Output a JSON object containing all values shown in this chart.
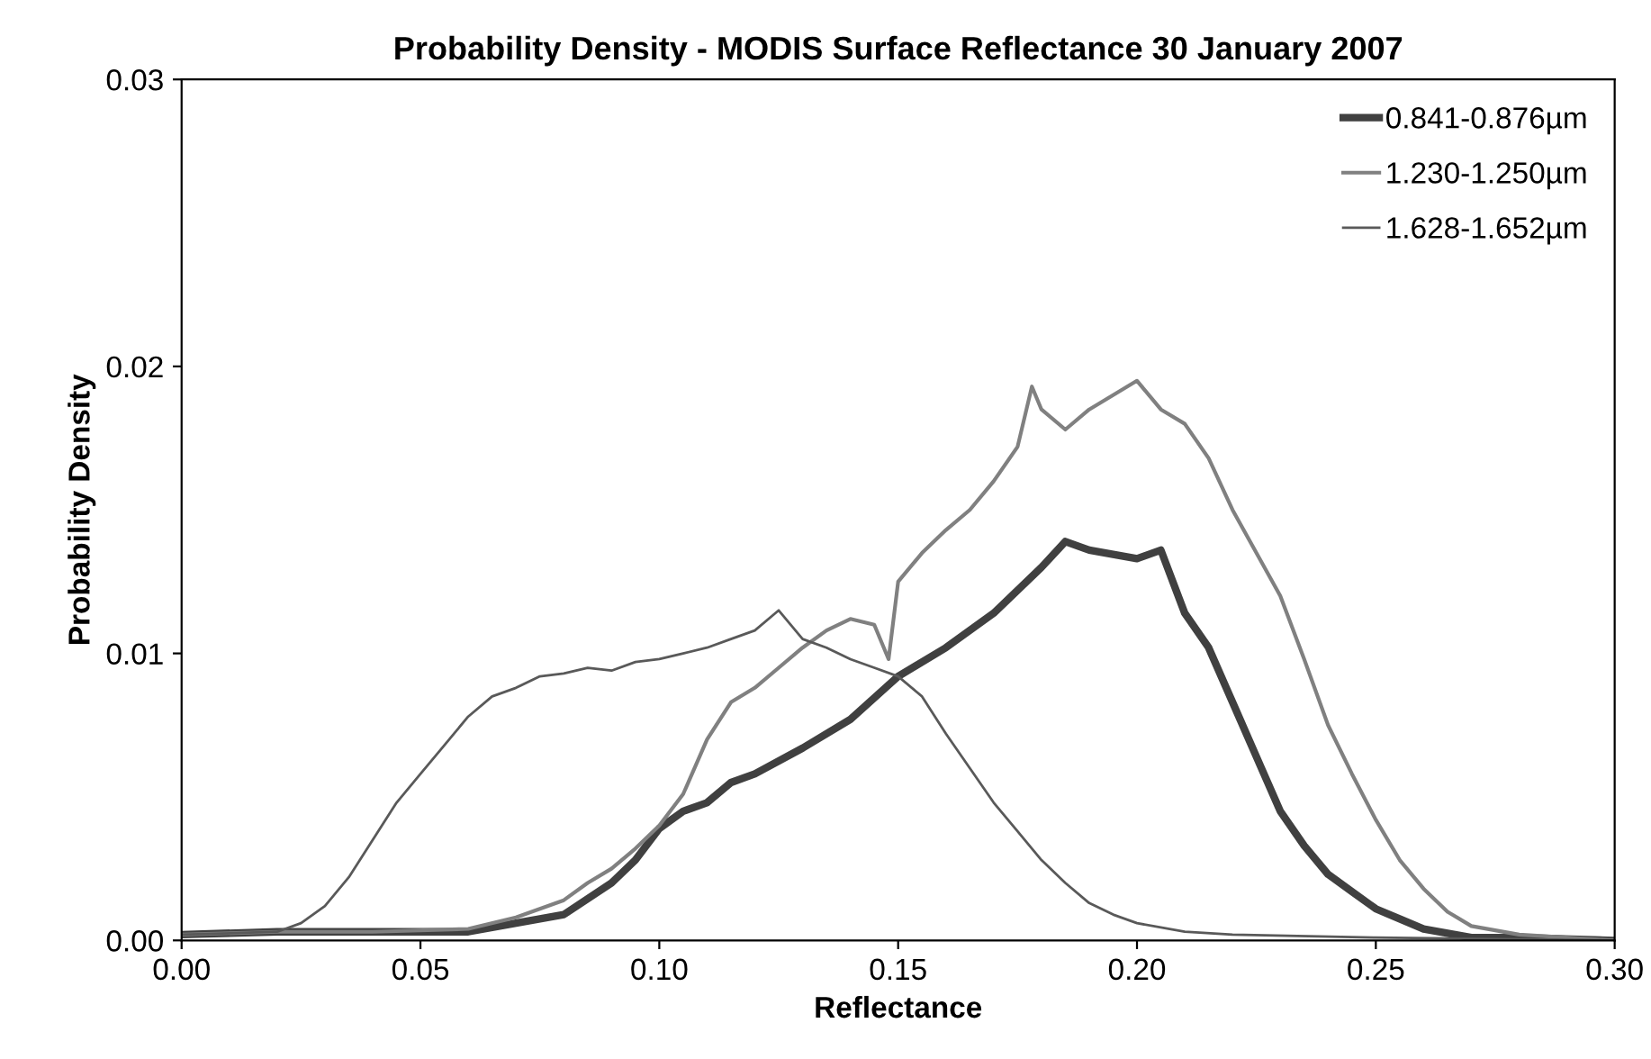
{
  "chart_data": {
    "type": "line",
    "title": "Probability Density - MODIS Surface Reflectance 30 January 2007",
    "xlabel": "Reflectance",
    "ylabel": "Probability Density",
    "xlim": [
      0,
      0.3
    ],
    "ylim": [
      0,
      0.03
    ],
    "xticks": [
      {
        "value": 0,
        "label": "0.00"
      },
      {
        "value": 0.05,
        "label": "0.05"
      },
      {
        "value": 0.1,
        "label": "0.10"
      },
      {
        "value": 0.15,
        "label": "0.15"
      },
      {
        "value": 0.2,
        "label": "0.20"
      },
      {
        "value": 0.25,
        "label": "0.25"
      },
      {
        "value": 0.3,
        "label": "0.30"
      }
    ],
    "yticks": [
      {
        "value": 0,
        "label": "0.00"
      },
      {
        "value": 0.01,
        "label": "0.01"
      },
      {
        "value": 0.02,
        "label": "0.02"
      },
      {
        "value": 0.03,
        "label": "0.03"
      }
    ],
    "grid": false,
    "legend": "top right",
    "marker": "none",
    "line_style": "solid",
    "series": [
      {
        "name": "0.841-0.876µm",
        "color": "#404040",
        "x": [
          0,
          0.02,
          0.04,
          0.06,
          0.07,
          0.08,
          0.09,
          0.095,
          0.1,
          0.105,
          0.11,
          0.115,
          0.12,
          0.13,
          0.14,
          0.15,
          0.16,
          0.17,
          0.18,
          0.185,
          0.19,
          0.2,
          0.205,
          0.21,
          0.215,
          0.22,
          0.225,
          0.23,
          0.235,
          0.24,
          0.245,
          0.25,
          0.26,
          0.27,
          0.28,
          0.3
        ],
        "values": [
          0.0002,
          0.0003,
          0.0003,
          0.0003,
          0.0006,
          0.0009,
          0.002,
          0.0028,
          0.0039,
          0.0045,
          0.0048,
          0.0055,
          0.0058,
          0.0067,
          0.0077,
          0.0092,
          0.0102,
          0.0114,
          0.013,
          0.0139,
          0.0136,
          0.0133,
          0.0136,
          0.0114,
          0.0102,
          0.0083,
          0.0064,
          0.0045,
          0.0033,
          0.0023,
          0.0017,
          0.0011,
          0.0004,
          0.0001,
          0.0001,
          0
        ]
      },
      {
        "name": "1.230-1.250µm",
        "color": "#808080",
        "x": [
          0,
          0.02,
          0.04,
          0.06,
          0.07,
          0.08,
          0.085,
          0.09,
          0.095,
          0.1,
          0.105,
          0.11,
          0.115,
          0.12,
          0.125,
          0.13,
          0.135,
          0.14,
          0.145,
          0.148,
          0.15,
          0.155,
          0.16,
          0.165,
          0.17,
          0.175,
          0.178,
          0.18,
          0.185,
          0.19,
          0.195,
          0.2,
          0.205,
          0.21,
          0.215,
          0.22,
          0.225,
          0.23,
          0.235,
          0.24,
          0.245,
          0.25,
          0.255,
          0.26,
          0.265,
          0.27,
          0.28,
          0.3
        ],
        "values": [
          0.0002,
          0.0003,
          0.0003,
          0.0004,
          0.0008,
          0.0014,
          0.002,
          0.0025,
          0.0032,
          0.004,
          0.0051,
          0.007,
          0.0083,
          0.0088,
          0.0095,
          0.0102,
          0.0108,
          0.0112,
          0.011,
          0.0098,
          0.0125,
          0.0135,
          0.0143,
          0.015,
          0.016,
          0.0172,
          0.0193,
          0.0185,
          0.0178,
          0.0185,
          0.019,
          0.0195,
          0.0185,
          0.018,
          0.0168,
          0.015,
          0.0135,
          0.012,
          0.0098,
          0.0075,
          0.0058,
          0.0042,
          0.0028,
          0.0018,
          0.001,
          0.0005,
          0.0002,
          0
        ]
      },
      {
        "name": "1.628-1.652µm",
        "color": "#595959",
        "x": [
          0,
          0.02,
          0.025,
          0.03,
          0.035,
          0.04,
          0.045,
          0.05,
          0.055,
          0.06,
          0.065,
          0.07,
          0.075,
          0.08,
          0.085,
          0.09,
          0.095,
          0.1,
          0.105,
          0.11,
          0.115,
          0.12,
          0.125,
          0.13,
          0.135,
          0.14,
          0.145,
          0.15,
          0.155,
          0.16,
          0.165,
          0.17,
          0.175,
          0.18,
          0.185,
          0.19,
          0.195,
          0.2,
          0.21,
          0.22,
          0.25,
          0.3
        ],
        "values": [
          0.0002,
          0.0003,
          0.0006,
          0.0012,
          0.0022,
          0.0035,
          0.0048,
          0.0058,
          0.0068,
          0.0078,
          0.0085,
          0.0088,
          0.0092,
          0.0093,
          0.0095,
          0.0094,
          0.0097,
          0.0098,
          0.01,
          0.0102,
          0.0105,
          0.0108,
          0.0115,
          0.0105,
          0.0102,
          0.0098,
          0.0095,
          0.0092,
          0.0085,
          0.0072,
          0.006,
          0.0048,
          0.0038,
          0.0028,
          0.002,
          0.0013,
          0.0009,
          0.0006,
          0.0003,
          0.0002,
          0.0001,
          0
        ]
      }
    ]
  }
}
